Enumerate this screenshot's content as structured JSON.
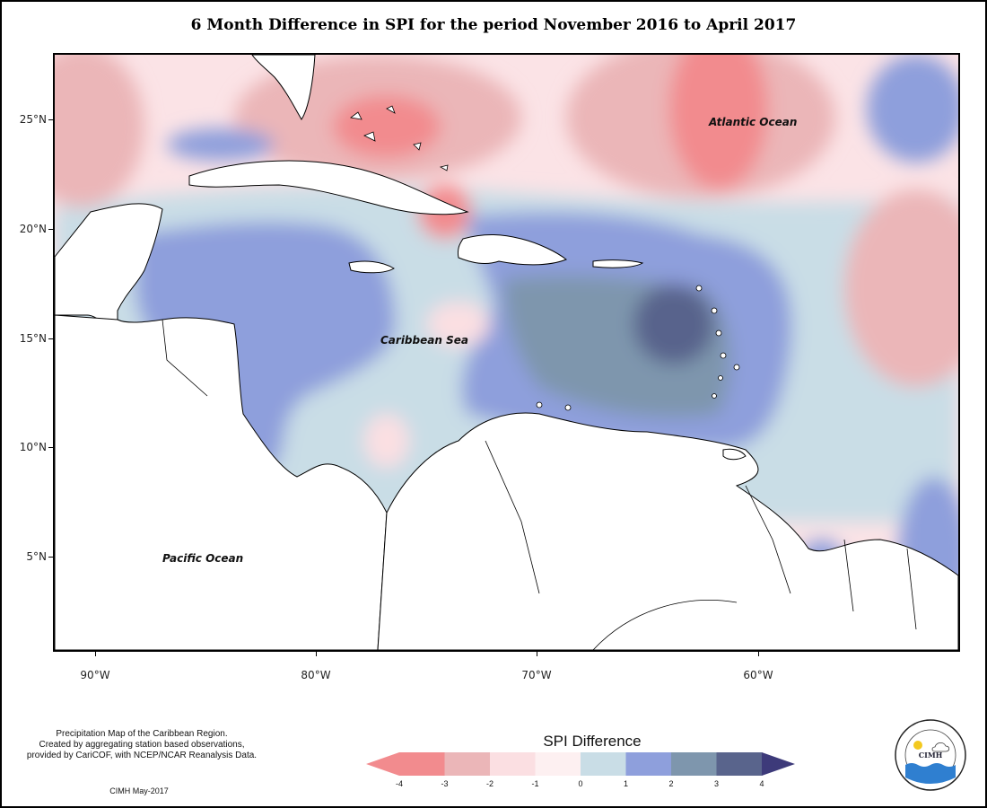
{
  "title": "6 Month Difference in SPI for the period November 2016 to April 2017",
  "map": {
    "ocean_labels": {
      "atlantic": "Atlantic Ocean",
      "caribbean": "Caribbean Sea",
      "pacific": "Pacific Ocean"
    },
    "lat_ticks": [
      "25°N",
      "20°N",
      "15°N",
      "10°N",
      "5°N"
    ],
    "lon_ticks": [
      "90°W",
      "80°W",
      "70°W",
      "60°W"
    ]
  },
  "legend": {
    "title": "SPI Difference",
    "ticks": [
      "-4",
      "-3",
      "-2",
      "-1",
      "0",
      "1",
      "2",
      "3",
      "4"
    ],
    "colors": [
      "#f28b8e",
      "#f28b8e",
      "#ebb6b8",
      "#fbdfe2",
      "#fdf0f1",
      "#c9dde6",
      "#8e9fdc",
      "#7e96ad",
      "#59648c",
      "#3d3a7a"
    ]
  },
  "credits": {
    "line1": "Precipitation Map of the Caribbean Region.",
    "line2": "Created by aggregating station based observations,",
    "line3": "provided by CariCOF, with NCEP/NCAR Reanalysis Data.",
    "date": "CIMH May-2017"
  },
  "logo": {
    "text": "CIMH",
    "ring_text": "Caribbean Institute for Meteorology and Hydrology"
  }
}
